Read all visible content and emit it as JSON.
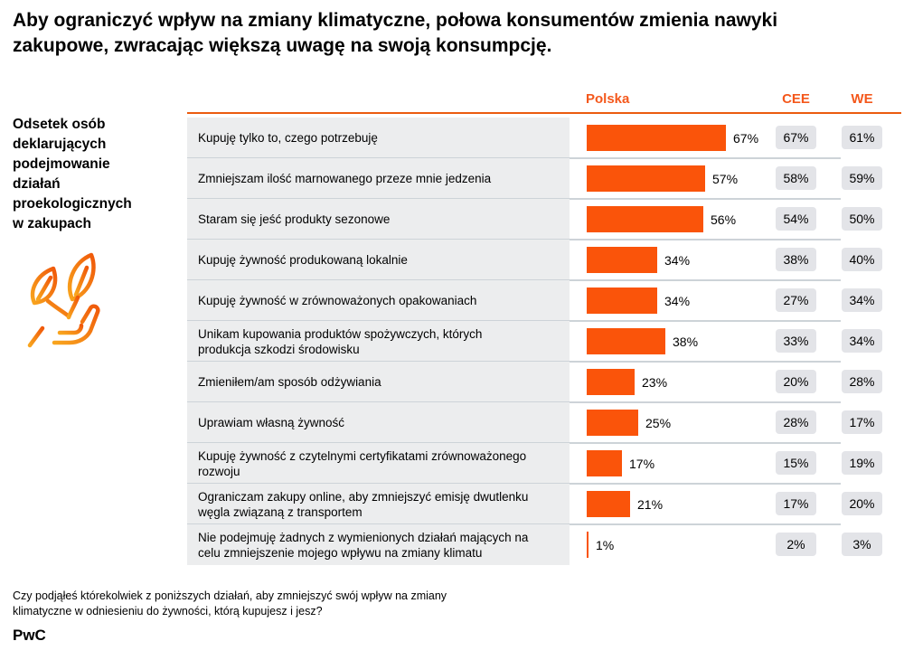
{
  "page": {
    "title": "Aby ograniczyć wpływ na zmiany klimatyczne, połowa konsumentów zmienia nawyki\nzakupowe, zwracając większą uwagę na swoją konsumpcję.",
    "side_label": "Odsetek osób\ndeklarujących\npodejmowanie\ndziałań\nproekologicznych\nw zakupach",
    "footnote": "Czy podjąłeś którekolwiek z poniższych działań, aby zmniejszyć swój wpływ na zmiany\nklimatyczne w odniesieniu do żywności, którą kupujesz i jesz?",
    "brand": "PwC"
  },
  "columns": {
    "polska": "Polska",
    "cee": "CEE",
    "we": "WE"
  },
  "colors": {
    "bar_orange": "#FA540A",
    "header_orange": "#F4581C",
    "rule_orange": "#EB5B0F",
    "row_label_bg": "#ECEDEE",
    "value_chip_bg": "#E3E4E8",
    "row_separator": "#CDD3D8",
    "text": "#000000"
  },
  "icons": {
    "hand_leaves": "hand-holding-leaves-icon"
  },
  "rows": [
    {
      "label": "Kupuję tylko to, czego potrzebuję",
      "polska_label": "67%",
      "cee_label": "67%",
      "we_label": "61%"
    },
    {
      "label": "Zmniejszam ilość marnowanego przeze mnie jedzenia",
      "polska_label": "57%",
      "cee_label": "58%",
      "we_label": "59%"
    },
    {
      "label": "Staram się jeść produkty sezonowe",
      "polska_label": "56%",
      "cee_label": "54%",
      "we_label": "50%"
    },
    {
      "label": "Kupuję żywność produkowaną lokalnie",
      "polska_label": "34%",
      "cee_label": "38%",
      "we_label": "40%"
    },
    {
      "label": "Kupuję żywność w zrównoważonych opakowaniach",
      "polska_label": "34%",
      "cee_label": "27%",
      "we_label": "34%"
    },
    {
      "label": "Unikam kupowania produktów spożywczych, których\nprodukcja szkodzi środowisku",
      "polska_label": "38%",
      "cee_label": "33%",
      "we_label": "34%"
    },
    {
      "label": "Zmieniłem/am sposób odżywiania",
      "polska_label": "23%",
      "cee_label": "20%",
      "we_label": "28%"
    },
    {
      "label": "Uprawiam własną żywność",
      "polska_label": "25%",
      "cee_label": "28%",
      "we_label": "17%"
    },
    {
      "label": "Kupuję żywność z czytelnymi certyfikatami zrównoważonego\nrozwoju",
      "polska_label": "17%",
      "cee_label": "15%",
      "we_label": "19%"
    },
    {
      "label": "Ograniczam zakupy online, aby zmniejszyć emisję dwutlenku\nwęgla związaną z transportem",
      "polska_label": "21%",
      "cee_label": "17%",
      "we_label": "20%"
    },
    {
      "label": "Nie podejmuję żadnych z wymienionych działań mających na\ncelu zmniejszenie mojego wpływu na zmiany klimatu",
      "polska_label": "1%",
      "cee_label": "2%",
      "we_label": "3%"
    }
  ],
  "chart_data": {
    "type": "bar",
    "orientation": "horizontal",
    "title": "Odsetek osób deklarujących podejmowanie działań proekologicznych w zakupach",
    "value_unit": "%",
    "xlim": [
      0,
      70
    ],
    "grid": false,
    "legend_position": "column-headers-top",
    "categories": [
      "Kupuję tylko to, czego potrzebuję",
      "Zmniejszam ilość marnowanego przeze mnie jedzenia",
      "Staram się jeść produkty sezonowe",
      "Kupuję żywność produkowaną lokalnie",
      "Kupuję żywność w zrównoważonych opakowaniach",
      "Unikam kupowania produktów spożywczych, których produkcja szkodzi środowisku",
      "Zmieniłem/am sposób odżywiania",
      "Uprawiam własną żywność",
      "Kupuję żywność z czytelnymi certyfikatami zrównoważonego rozwoju",
      "Ograniczam zakupy online, aby zmniejszyć emisję dwutlenku węgla związaną z transportem",
      "Nie podejmuję żadnych z wymienionych działań mających na celu zmniejszenie mojego wpływu na zmiany klimatu"
    ],
    "series": [
      {
        "name": "Polska",
        "values": [
          67,
          57,
          56,
          34,
          34,
          38,
          23,
          25,
          17,
          21,
          1
        ]
      },
      {
        "name": "CEE",
        "values": [
          67,
          58,
          54,
          38,
          27,
          33,
          20,
          28,
          15,
          17,
          2
        ]
      },
      {
        "name": "WE",
        "values": [
          61,
          59,
          50,
          40,
          34,
          34,
          28,
          17,
          19,
          20,
          3
        ]
      }
    ]
  }
}
